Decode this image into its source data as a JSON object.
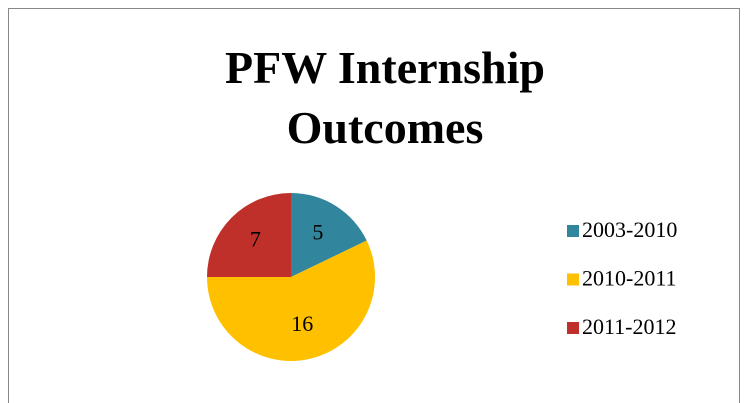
{
  "chart_data": {
    "type": "pie",
    "title": "PFW Internship Outcomes",
    "categories": [
      "2003-2010",
      "2010-2011",
      "2011-2012"
    ],
    "values": [
      5,
      16,
      7
    ],
    "colors": [
      "#31859c",
      "#ffc000",
      "#c0302a"
    ],
    "legend": "right"
  }
}
